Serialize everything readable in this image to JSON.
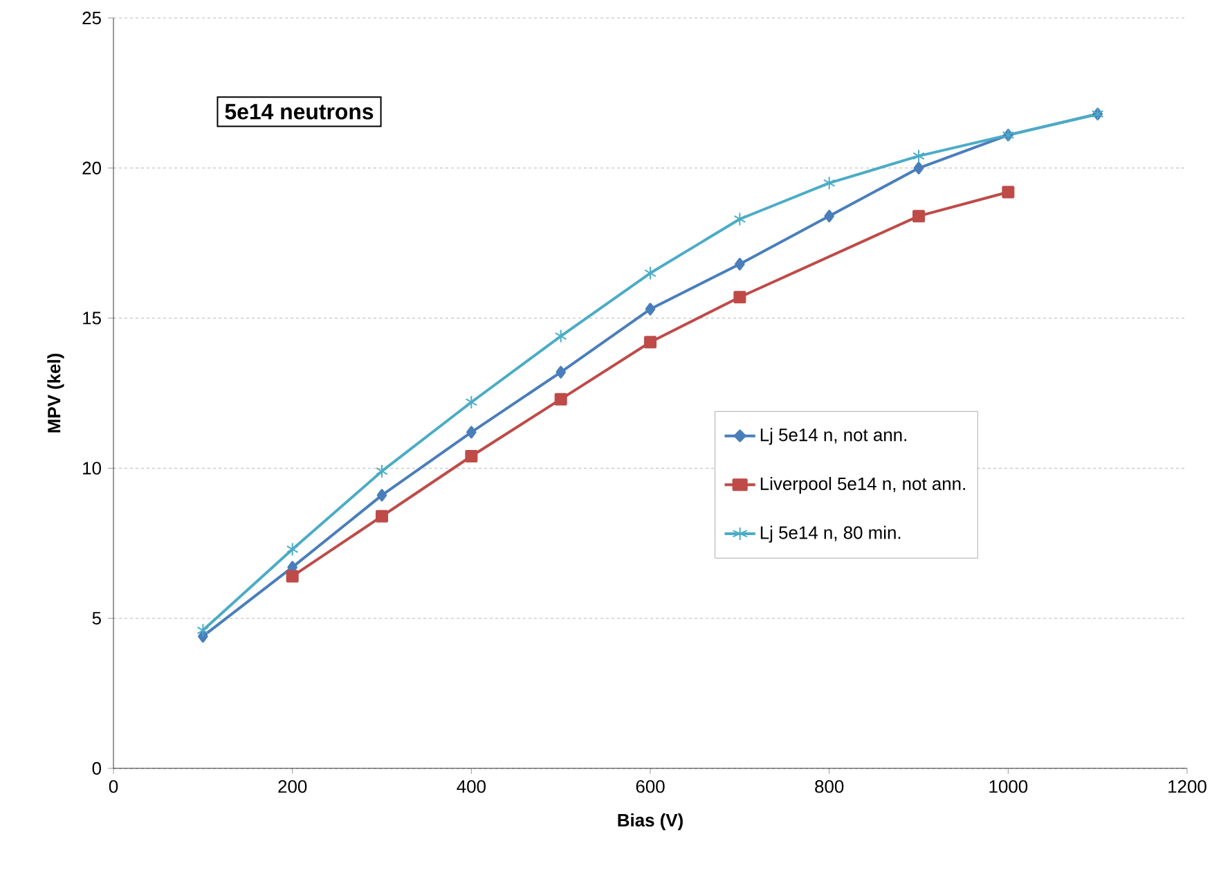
{
  "chart_data": {
    "type": "line",
    "xlabel": "Bias (V)",
    "ylabel": "MPV (kel)",
    "xlim": [
      0,
      1200
    ],
    "xticks": [
      0,
      200,
      400,
      600,
      800,
      1000,
      1200
    ],
    "ylim": [
      0,
      25
    ],
    "yticks": [
      0,
      5,
      10,
      15,
      20,
      25
    ],
    "grid": "y",
    "legend": "right",
    "line_style": "solid",
    "annotations": [
      "5e14 neutrons"
    ],
    "series": [
      {
        "name": "Lj 5e14 n, not ann.",
        "color": "#4a7ebb",
        "marker": "diamond",
        "x": [
          100,
          200,
          300,
          400,
          500,
          600,
          700,
          800,
          900,
          1000,
          1100
        ],
        "values": [
          4.4,
          6.7,
          9.1,
          11.2,
          13.2,
          15.3,
          16.8,
          18.4,
          20.0,
          21.1,
          21.8
        ]
      },
      {
        "name": "Liverpool 5e14 n, not ann.",
        "color": "#be4b48",
        "marker": "square",
        "x": [
          200,
          300,
          400,
          500,
          600,
          700,
          900,
          1000
        ],
        "values": [
          6.4,
          8.4,
          10.4,
          12.3,
          14.2,
          15.7,
          18.4,
          19.2
        ]
      },
      {
        "name": "Lj 5e14 n, 80 min.",
        "color": "#4bacc6",
        "marker": "cross",
        "x": [
          100,
          200,
          300,
          400,
          500,
          600,
          700,
          800,
          900,
          1000,
          1100
        ],
        "values": [
          4.6,
          7.3,
          9.9,
          12.2,
          14.4,
          16.5,
          18.3,
          19.5,
          20.4,
          21.1,
          21.8
        ]
      }
    ]
  }
}
